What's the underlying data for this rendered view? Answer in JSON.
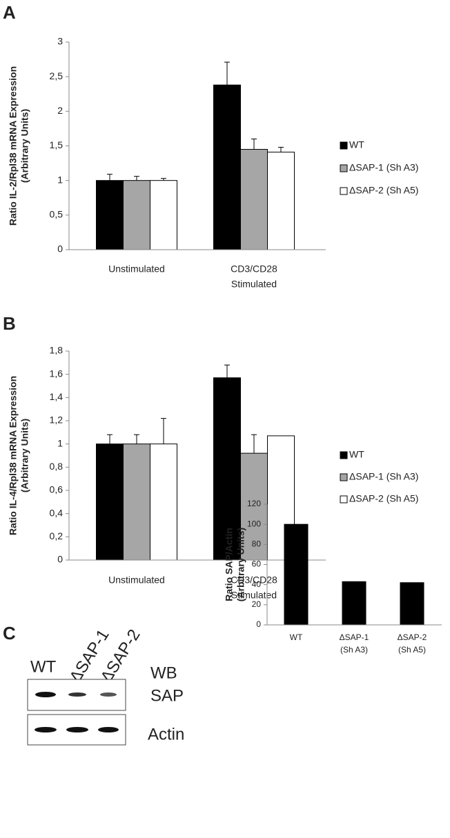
{
  "chart_data": [
    {
      "type": "bar",
      "panel": "A",
      "ylabel": [
        "Ratio IL-2/Rpl38 mRNA Expression",
        "(Arbitrary Units)"
      ],
      "categories": [
        [
          "Unstimulated"
        ],
        [
          "CD3/CD28",
          "Stimulated"
        ]
      ],
      "series": [
        {
          "name": "WT",
          "color": "#000000",
          "values": [
            1.0,
            2.38
          ],
          "errors": [
            0.09,
            0.33
          ]
        },
        {
          "name": "ΔSAP-1 (Sh A3)",
          "color": "#a6a6a6",
          "values": [
            1.0,
            1.45
          ],
          "errors": [
            0.06,
            0.15
          ]
        },
        {
          "name": "ΔSAP-2 (Sh A5)",
          "color": "#ffffff",
          "values": [
            1.0,
            1.41
          ],
          "errors": [
            0.03,
            0.07
          ]
        }
      ],
      "ylim": [
        0,
        3
      ],
      "yticks": [
        0,
        {
          "value": 0.5,
          "label": "0,5"
        },
        1,
        {
          "value": 1.5,
          "label": "1,5"
        },
        2,
        {
          "value": 2.5,
          "label": "2,5"
        },
        3
      ],
      "legend": "right"
    },
    {
      "type": "bar",
      "panel": "B",
      "ylabel": [
        "Ratio IL-4/Rpl38 mRNA Expression",
        "(Arbitrary Units)"
      ],
      "categories": [
        [
          "Unstimulated"
        ],
        [
          "CD3/CD28",
          "Stimulated"
        ]
      ],
      "series": [
        {
          "name": "WT",
          "color": "#000000",
          "values": [
            1.0,
            1.57
          ],
          "errors": [
            0.08,
            0.11
          ]
        },
        {
          "name": "ΔSAP-1 (Sh A3)",
          "color": "#a6a6a6",
          "values": [
            1.0,
            0.92
          ],
          "errors": [
            0.08,
            0.16
          ]
        },
        {
          "name": "ΔSAP-2 (Sh A5)",
          "color": "#ffffff",
          "values": [
            1.0,
            1.07
          ],
          "errors": [
            0.22,
            null
          ]
        }
      ],
      "ylim": [
        0,
        1.8
      ],
      "yticks": [
        0,
        {
          "value": 0.2,
          "label": "0,2"
        },
        {
          "value": 0.4,
          "label": "0,4"
        },
        {
          "value": 0.6,
          "label": "0,6"
        },
        {
          "value": 0.8,
          "label": "0,8"
        },
        1,
        {
          "value": 1.2,
          "label": "1,2"
        },
        {
          "value": 1.4,
          "label": "1,4"
        },
        {
          "value": 1.6,
          "label": "1,6"
        },
        {
          "value": 1.8,
          "label": "1,8"
        }
      ],
      "legend": "right"
    },
    {
      "type": "bar",
      "ylabel": [
        "Ratio SAP/Actin",
        "(Arbitrary Units)"
      ],
      "categories": [
        [
          "WT"
        ],
        [
          "ΔSAP-1",
          "(Sh A3)"
        ],
        [
          "ΔSAP-2",
          "(Sh A5)"
        ]
      ],
      "series": [
        {
          "name": null,
          "color": "#000000",
          "values": [
            100,
            43,
            42
          ]
        }
      ],
      "ylim": [
        0,
        120
      ],
      "yticks": [
        0,
        20,
        40,
        60,
        80,
        100,
        120
      ]
    }
  ],
  "blot": {
    "panel": "C",
    "lanes": [
      "WT",
      "ΔSAP-1",
      "ΔSAP-2"
    ],
    "rows": [
      "SAP",
      "Actin"
    ],
    "method": "WB"
  }
}
